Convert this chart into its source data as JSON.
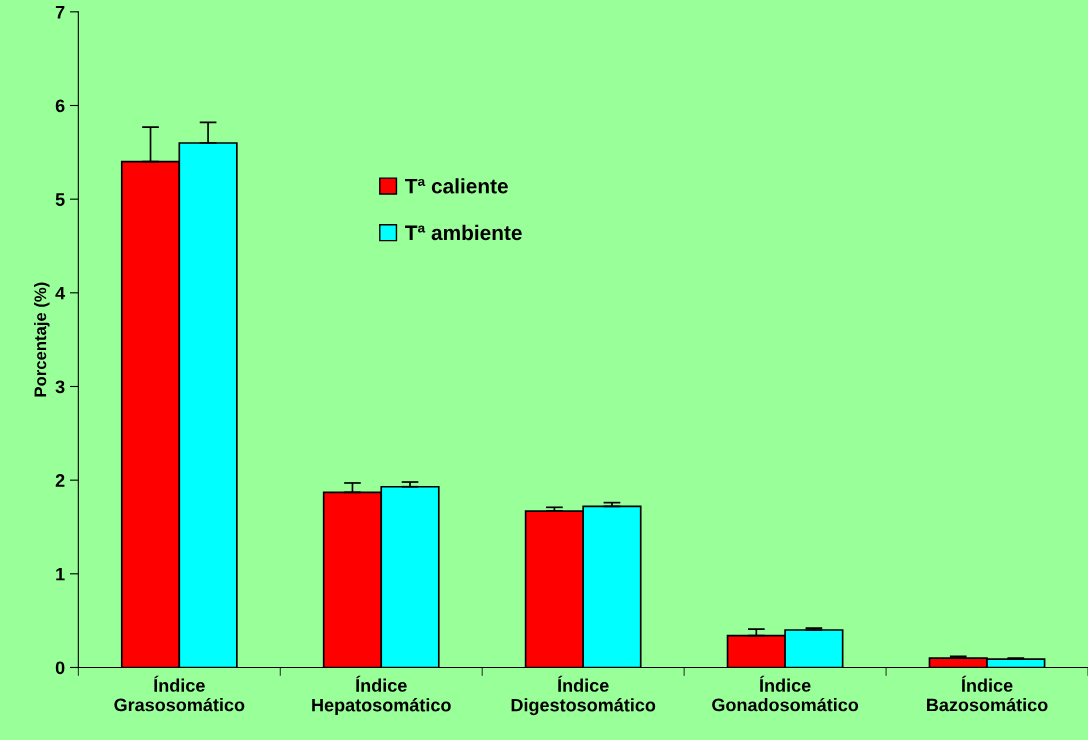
{
  "chart_data": {
    "type": "bar",
    "ylabel": "Porcentaje (%)",
    "categories": [
      "Índice\nGrasosomático",
      "Índice\nHepatosomático",
      "Índice\nDigestosomático",
      "Índice\nGonadosomático",
      "Índice\nBazosomático"
    ],
    "series": [
      {
        "name": "Tª caliente",
        "color": "#ff0000",
        "values": [
          5.4,
          1.87,
          1.67,
          0.34,
          0.1
        ],
        "errors": [
          [
            5.4,
            5.77
          ],
          [
            1.87,
            1.97
          ],
          [
            1.67,
            1.71
          ],
          [
            0.34,
            0.41
          ],
          [
            0.1,
            0.12
          ]
        ]
      },
      {
        "name": "Tª ambiente",
        "color": "#00ffff",
        "values": [
          5.6,
          1.93,
          1.72,
          0.4,
          0.09
        ],
        "errors": [
          [
            5.6,
            5.82
          ],
          [
            1.93,
            1.98
          ],
          [
            1.72,
            1.76
          ],
          [
            0.4,
            0.42
          ],
          [
            0.09,
            0.1
          ]
        ]
      }
    ],
    "ylim": [
      0,
      7
    ],
    "yticks": [
      0,
      1,
      2,
      3,
      4,
      5,
      6,
      7
    ],
    "grid": false,
    "legend": "top center"
  }
}
